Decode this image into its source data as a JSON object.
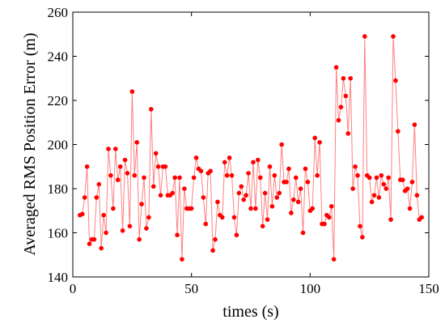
{
  "chart_data": {
    "type": "line",
    "title": "",
    "xlabel": "times (s)",
    "ylabel": "Averaged RMS Position Error (m)",
    "xlim": [
      0,
      150
    ],
    "ylim": [
      140,
      260
    ],
    "xticks": [
      0,
      50,
      100,
      150
    ],
    "yticks": [
      140,
      160,
      180,
      200,
      220,
      240,
      260
    ],
    "grid": false,
    "legend": "none",
    "marker": "circle",
    "color": "#ff0000",
    "line_color": "#ff8080",
    "series": [
      {
        "x": [
          3,
          4,
          5,
          6,
          7,
          8,
          9,
          10,
          11,
          12,
          13,
          14,
          15,
          16,
          17,
          18,
          19,
          20,
          21,
          22,
          23,
          24,
          25,
          26,
          27,
          28,
          29,
          30,
          31,
          32,
          33,
          34,
          35,
          36,
          37,
          38,
          39,
          40,
          41,
          42,
          43,
          44,
          45,
          46,
          47,
          48,
          49,
          50,
          51,
          52,
          53,
          54,
          55,
          56,
          57,
          58,
          59,
          60,
          61,
          62,
          63,
          64,
          65,
          66,
          67,
          68,
          69,
          70,
          71,
          72,
          73,
          74,
          75,
          76,
          77,
          78,
          79,
          80,
          81,
          82,
          83,
          84,
          85,
          86,
          87,
          88,
          89,
          90,
          91,
          92,
          93,
          94,
          95,
          96,
          97,
          98,
          99,
          100,
          101,
          102,
          103,
          104,
          105,
          106,
          107,
          108,
          109,
          110,
          111,
          112,
          113,
          114,
          115,
          116,
          117,
          118,
          119,
          120,
          121,
          122,
          123,
          124,
          125,
          126,
          127,
          128,
          129,
          130,
          131,
          132,
          133,
          134,
          135,
          136,
          137,
          138,
          139,
          140,
          141,
          142,
          143,
          144,
          145,
          146,
          147
        ],
        "y": [
          168,
          168.5,
          176,
          190,
          155,
          157,
          157,
          176,
          182,
          153,
          168,
          160,
          198,
          186,
          171,
          198,
          184,
          190,
          161,
          193,
          187,
          163,
          224,
          186,
          201,
          157,
          173,
          185,
          162,
          167,
          216,
          181,
          196,
          190,
          177,
          190,
          190,
          177,
          177,
          178,
          185,
          159,
          185,
          148,
          180,
          171,
          171,
          171,
          185,
          194,
          189,
          188,
          176,
          164,
          187,
          188,
          152,
          157,
          174,
          168,
          167,
          192,
          186,
          194,
          186,
          167,
          159,
          178,
          181,
          175,
          177,
          187,
          171,
          192,
          171,
          193,
          185,
          163,
          178,
          166,
          190,
          172,
          186,
          176,
          178,
          200,
          183,
          183,
          189,
          169,
          175,
          185,
          174,
          180,
          160,
          189,
          183,
          170,
          171,
          203,
          186,
          201,
          164,
          164,
          168,
          167,
          172,
          148,
          235,
          211,
          217,
          230,
          222,
          205,
          230,
          180,
          190,
          186,
          163,
          158,
          249,
          186,
          185,
          174,
          177,
          185,
          176,
          186,
          182,
          180,
          185,
          166,
          249,
          229,
          206,
          184,
          184,
          179,
          180,
          171,
          183,
          209,
          177,
          166,
          167
        ]
      }
    ]
  }
}
